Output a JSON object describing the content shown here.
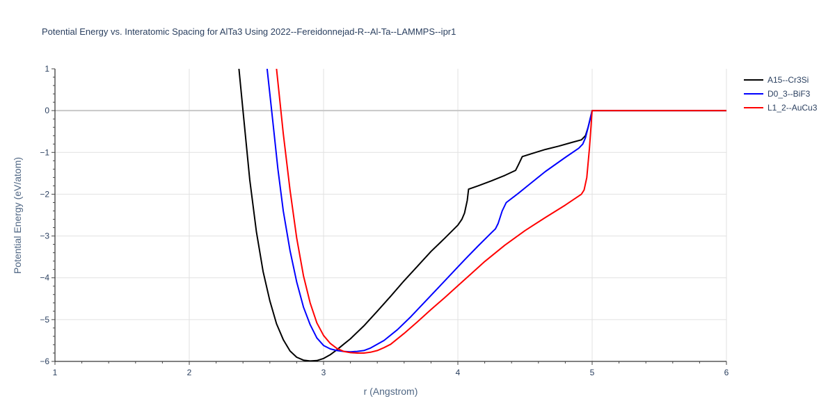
{
  "chart_data": {
    "type": "line",
    "title": "Potential Energy vs. Interatomic Spacing for AlTa3 Using 2022--Fereidonnejad-R--Al-Ta--LAMMPS--ipr1",
    "xlabel": "r (Angstrom)",
    "ylabel": "Potential Energy (eV/atom)",
    "xlim": [
      1,
      6
    ],
    "ylim": [
      -6,
      1
    ],
    "x_ticks": [
      "1",
      "2",
      "3",
      "4",
      "5",
      "6"
    ],
    "y_ticks": [
      "1",
      "0",
      "−1",
      "−2",
      "−3",
      "−4",
      "−5",
      "−6"
    ],
    "grid": true,
    "legend_position": "top-right",
    "series": [
      {
        "name": "A15--Cr3Si",
        "color": "#000000",
        "x": [
          2.37,
          2.4,
          2.45,
          2.5,
          2.55,
          2.6,
          2.65,
          2.7,
          2.75,
          2.8,
          2.85,
          2.9,
          2.95,
          3.0,
          3.05,
          3.1,
          3.15,
          3.2,
          3.3,
          3.4,
          3.5,
          3.6,
          3.7,
          3.8,
          3.9,
          4.0,
          4.03,
          4.05,
          4.07,
          4.08,
          4.15,
          4.25,
          4.35,
          4.43,
          4.45,
          4.48,
          4.55,
          4.65,
          4.75,
          4.85,
          4.92,
          4.95,
          4.97,
          5.0,
          5.2,
          5.5,
          6.0
        ],
        "y": [
          1.0,
          0.0,
          -1.65,
          -2.9,
          -3.85,
          -4.55,
          -5.1,
          -5.48,
          -5.75,
          -5.9,
          -5.97,
          -5.99,
          -5.98,
          -5.93,
          -5.84,
          -5.72,
          -5.59,
          -5.46,
          -5.15,
          -4.8,
          -4.44,
          -4.07,
          -3.72,
          -3.37,
          -3.06,
          -2.74,
          -2.6,
          -2.45,
          -2.15,
          -1.88,
          -1.8,
          -1.68,
          -1.55,
          -1.43,
          -1.3,
          -1.1,
          -1.03,
          -0.93,
          -0.85,
          -0.76,
          -0.7,
          -0.6,
          -0.4,
          0.0,
          0.0,
          0.0,
          0.0
        ]
      },
      {
        "name": "D0_3--BiF3",
        "color": "#0000ff",
        "x": [
          2.58,
          2.62,
          2.66,
          2.7,
          2.75,
          2.8,
          2.85,
          2.9,
          2.95,
          3.0,
          3.05,
          3.1,
          3.15,
          3.2,
          3.25,
          3.3,
          3.35,
          3.45,
          3.55,
          3.65,
          3.75,
          3.85,
          3.95,
          4.05,
          4.15,
          4.25,
          4.28,
          4.3,
          4.33,
          4.36,
          4.45,
          4.55,
          4.65,
          4.8,
          4.9,
          4.93,
          4.95,
          4.97,
          5.0,
          5.2,
          5.5,
          6.0
        ],
        "y": [
          1.0,
          -0.2,
          -1.4,
          -2.4,
          -3.35,
          -4.1,
          -4.7,
          -5.12,
          -5.44,
          -5.62,
          -5.7,
          -5.74,
          -5.76,
          -5.77,
          -5.76,
          -5.74,
          -5.68,
          -5.5,
          -5.24,
          -4.93,
          -4.59,
          -4.25,
          -3.91,
          -3.57,
          -3.24,
          -2.92,
          -2.83,
          -2.7,
          -2.4,
          -2.2,
          -1.98,
          -1.72,
          -1.46,
          -1.12,
          -0.9,
          -0.8,
          -0.65,
          -0.4,
          0.0,
          0.0,
          0.0,
          0.0
        ]
      },
      {
        "name": "L1_2--AuCu3",
        "color": "#ff0000",
        "x": [
          2.65,
          2.7,
          2.75,
          2.8,
          2.85,
          2.9,
          2.95,
          3.0,
          3.05,
          3.1,
          3.15,
          3.2,
          3.25,
          3.3,
          3.35,
          3.4,
          3.45,
          3.5,
          3.6,
          3.7,
          3.8,
          3.9,
          4.0,
          4.1,
          4.2,
          4.35,
          4.5,
          4.65,
          4.8,
          4.92,
          4.94,
          4.96,
          4.98,
          5.0,
          5.2,
          5.5,
          6.0
        ],
        "y": [
          1.0,
          -0.55,
          -1.9,
          -3.05,
          -3.95,
          -4.6,
          -5.08,
          -5.38,
          -5.57,
          -5.69,
          -5.76,
          -5.79,
          -5.8,
          -5.8,
          -5.78,
          -5.74,
          -5.67,
          -5.59,
          -5.33,
          -5.05,
          -4.76,
          -4.48,
          -4.19,
          -3.9,
          -3.61,
          -3.22,
          -2.87,
          -2.56,
          -2.26,
          -2.0,
          -1.9,
          -1.6,
          -0.9,
          0.0,
          0.0,
          0.0,
          0.0
        ]
      }
    ]
  }
}
